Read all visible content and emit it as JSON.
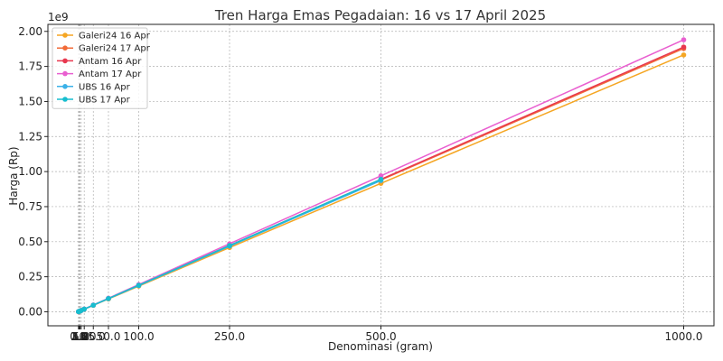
{
  "chart_data": {
    "type": "line",
    "title": "Tren Harga Emas Pegadaian: 16 vs 17 April 2025",
    "xlabel": "Denominasi (gram)",
    "ylabel": "Harga (Rp)",
    "y_scale_note": "1e9",
    "x": [
      0.5,
      1,
      2,
      3,
      5,
      10,
      25,
      50,
      100,
      250,
      500,
      1000
    ],
    "x_ticks": [
      0.5,
      1,
      2,
      3,
      5,
      10,
      25,
      50,
      100,
      250,
      500,
      1000
    ],
    "x_tick_labels": [
      "0.5",
      "1.0",
      "2.0",
      "3.0",
      "5.0",
      "10.0",
      "25.0",
      "50.0",
      "100.0",
      "250.0",
      "500.0",
      "1000.0"
    ],
    "y_ticks": [
      0,
      0.25,
      0.5,
      0.75,
      1.0,
      1.25,
      1.5,
      1.75,
      2.0
    ],
    "y_tick_labels": [
      "0.00",
      "0.25",
      "0.50",
      "0.75",
      "1.00",
      "1.25",
      "1.50",
      "1.75",
      "2.00"
    ],
    "xlim": [
      -50,
      1050
    ],
    "ylim": [
      -0.1,
      2.05
    ],
    "grid": true,
    "legend_position": "top-left",
    "series": [
      {
        "name": "Galeri24 16 Apr",
        "color": "#f5a623",
        "values": [
          0.0009,
          0.0018,
          0.0037,
          0.0055,
          0.0092,
          0.0183,
          0.0458,
          0.0916,
          0.1832,
          0.458,
          0.916,
          1.832
        ]
      },
      {
        "name": "Galeri24 17 Apr",
        "color": "#f26b38",
        "values": [
          0.00094,
          0.00188,
          0.00376,
          0.00564,
          0.0094,
          0.0188,
          0.047,
          0.094,
          0.188,
          0.47,
          0.94,
          1.878
        ]
      },
      {
        "name": "Antam 16 Apr",
        "color": "#e8384f",
        "values": [
          0.00095,
          0.0019,
          0.0038,
          0.0057,
          0.0095,
          0.0189,
          0.0472,
          0.0945,
          0.189,
          0.4725,
          0.945,
          1.888
        ]
      },
      {
        "name": "Antam 17 Apr",
        "color": "#e95fd0",
        "values": [
          0.00097,
          0.00195,
          0.0039,
          0.0058,
          0.0097,
          0.0194,
          0.0485,
          0.097,
          0.194,
          0.485,
          0.97,
          1.94
        ]
      },
      {
        "name": "UBS 16 Apr",
        "color": "#3bb1e8",
        "values": [
          0.00093,
          0.00187,
          0.00374,
          0.0056,
          0.0093,
          0.0187,
          0.0468,
          0.0936,
          0.187,
          0.468,
          0.936,
          null
        ]
      },
      {
        "name": "UBS 17 Apr",
        "color": "#17becf",
        "values": [
          0.00094,
          0.00189,
          0.00378,
          0.0057,
          0.0094,
          0.0189,
          0.0473,
          0.0946,
          0.189,
          0.4725,
          0.945,
          null
        ]
      }
    ]
  }
}
